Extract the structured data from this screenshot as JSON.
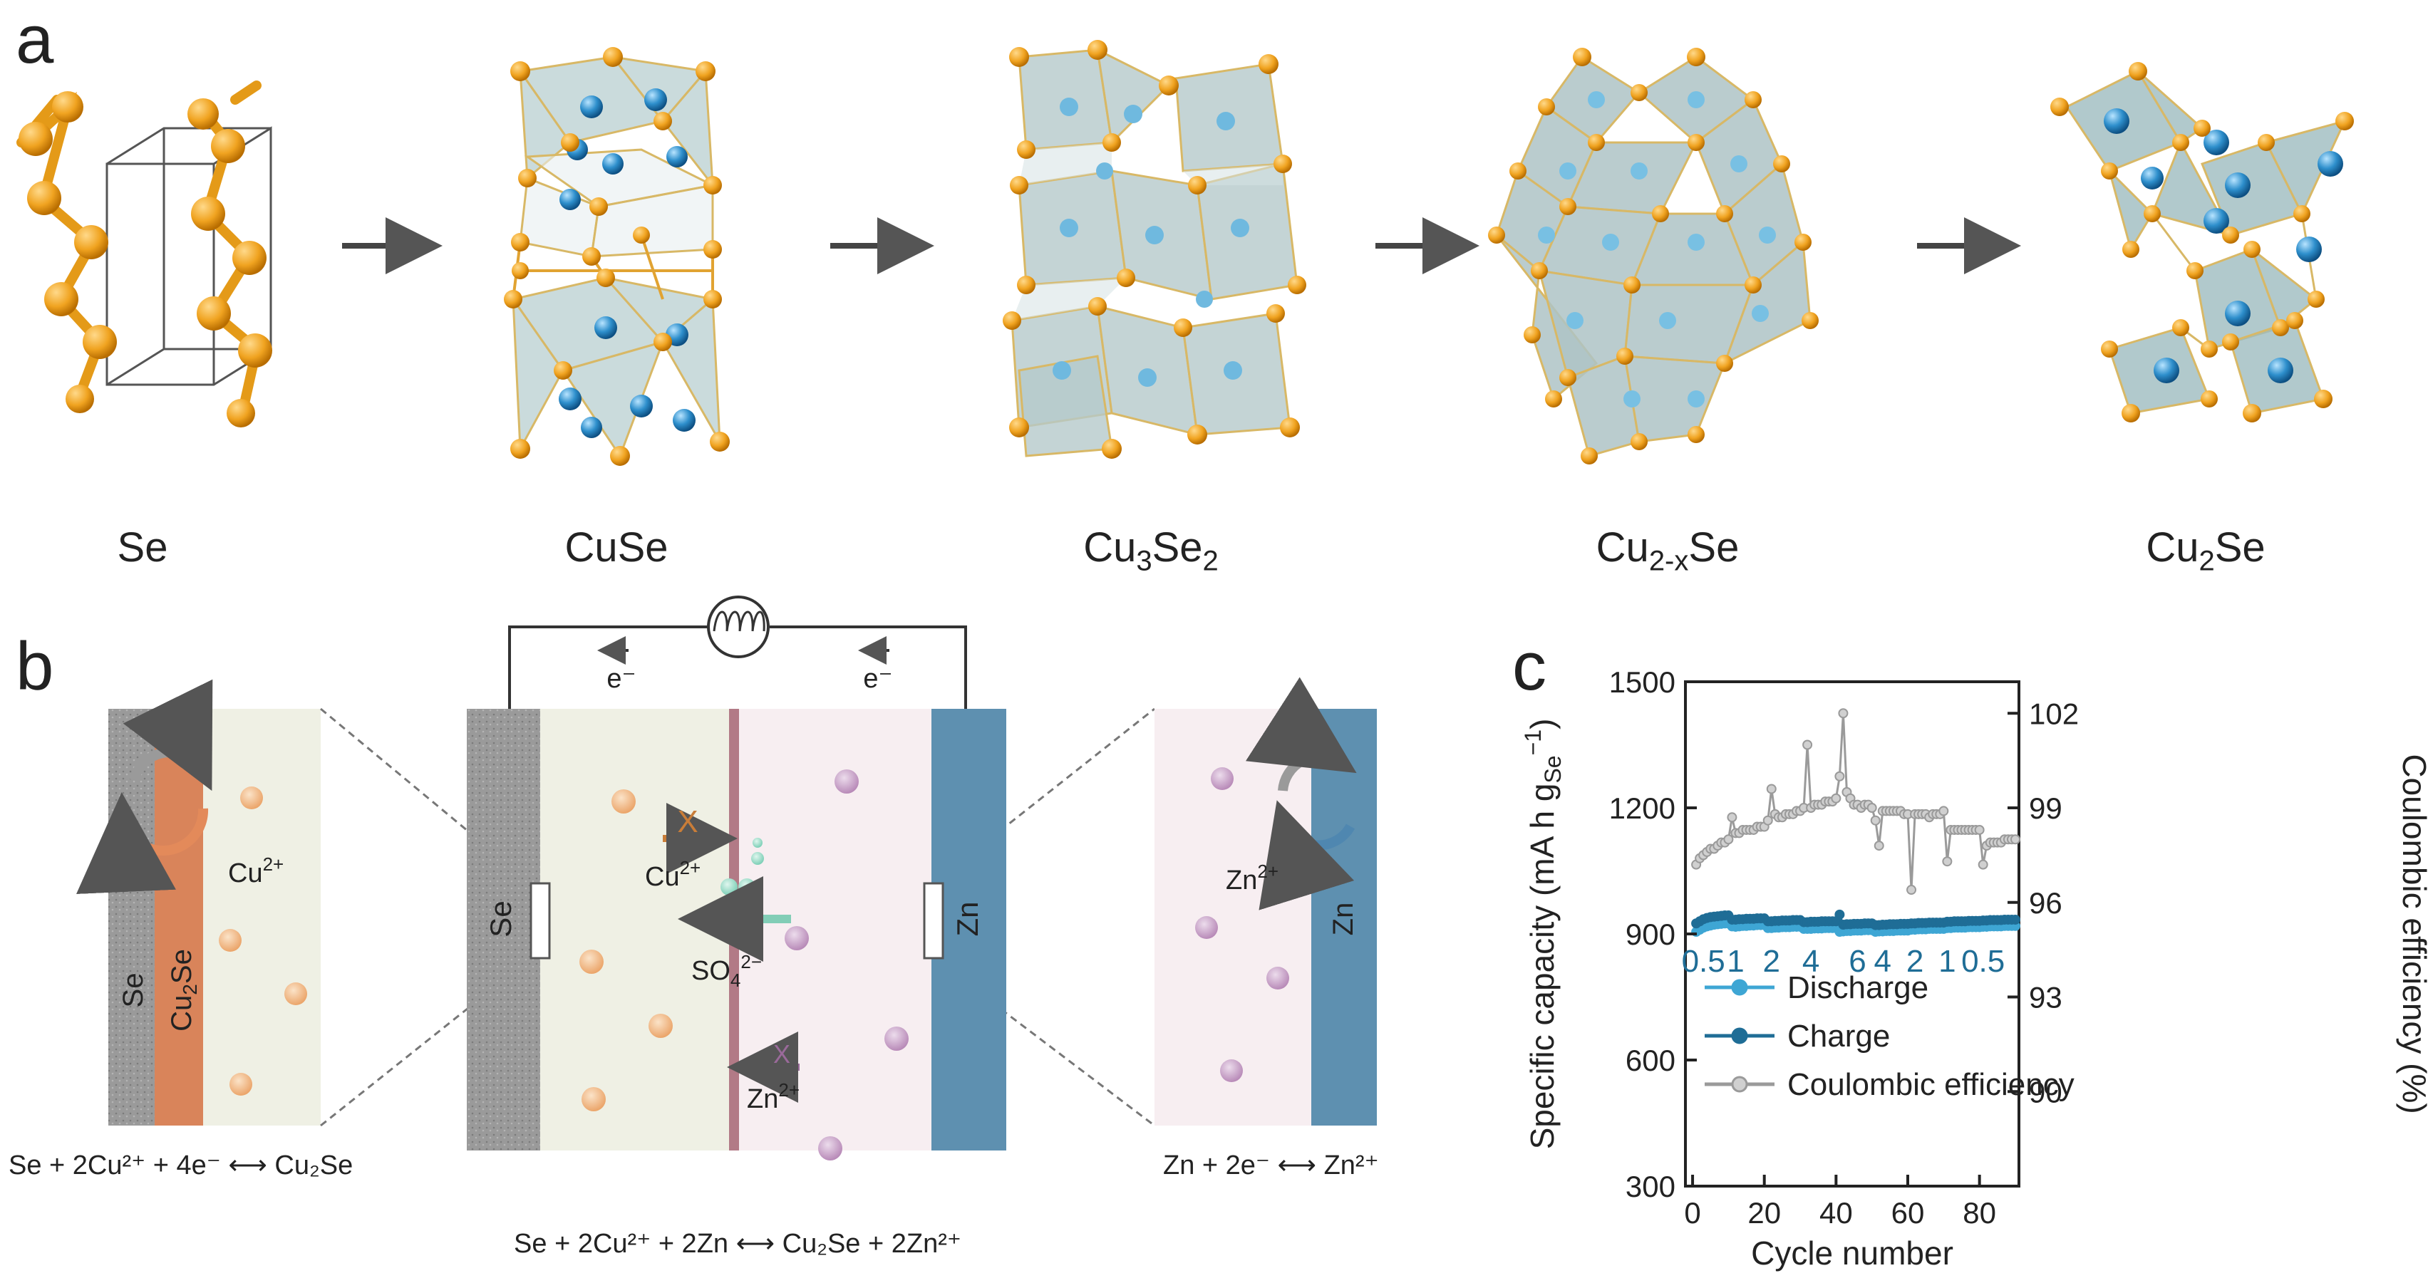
{
  "panels": {
    "a": "a",
    "b": "b",
    "c": "c"
  },
  "panel_a": {
    "structures": [
      {
        "name": "Se",
        "label": "Se"
      },
      {
        "name": "CuSe",
        "label": "CuSe"
      },
      {
        "name": "Cu3Se2",
        "label": "Cu",
        "sub1": "3",
        "label2": "Se",
        "sub2": "2"
      },
      {
        "name": "Cu2-xSe",
        "label": "Cu",
        "sub1": "2-x",
        "label2": "Se"
      },
      {
        "name": "Cu2Se",
        "label": "Cu",
        "sub1": "2",
        "label2": "Se"
      }
    ]
  },
  "panel_b": {
    "electron_left": "e⁻",
    "electron_right": "e⁻",
    "left_zoom": {
      "se_label": "Se",
      "cu2se_main": "Cu",
      "cu2se_sub": "2",
      "cu2se_tail": "Se",
      "ion_main": "Cu",
      "ion_sup": "2+",
      "reaction": "Se + 2Cu²⁺ + 4e⁻ ⟷ Cu₂Se"
    },
    "cell": {
      "se_electrode": "Se",
      "zn_electrode": "Zn",
      "cu_blocked": "X",
      "cu_main": "Cu",
      "cu_sup": "2+",
      "so4_main": "SO",
      "so4_sub": "4",
      "so4_sup": "2−",
      "zn_blocked": "X",
      "zn_main": "Zn",
      "zn_sup": "2+",
      "reaction": "Se + 2Cu²⁺ + 2Zn ⟷ Cu₂Se + 2Zn²⁺"
    },
    "right_zoom": {
      "zn_label": "Zn",
      "ion_main": "Zn",
      "ion_sup": "2+",
      "reaction": "Zn + 2e⁻ ⟷ Zn²⁺"
    },
    "colors": {
      "se": "#9e9e9e",
      "cu2se": "#d9845a",
      "catholyte": "#eff0e4",
      "anolyte": "#f7eef1",
      "zn": "#5e90b0",
      "separator": "#b27a86",
      "cu_ion": "#f0bf8c",
      "zn_ion": "#c7a4c7",
      "so4": "#8ed8c4"
    }
  },
  "chart_data": {
    "type": "scatter",
    "xlabel": "Cycle number",
    "ylabel_main": "Specific capacity (mA h g",
    "ylabel_sub": "Se",
    "ylabel_sup": "−1",
    "ylabel_end": ")",
    "y2label": "Coulombic efficiency (%)",
    "xlim": [
      -2,
      91
    ],
    "ylim": [
      300,
      1500
    ],
    "y2lim": [
      87,
      103
    ],
    "xticks": [
      0,
      20,
      40,
      60,
      80
    ],
    "yticks": [
      300,
      600,
      900,
      1200,
      1500
    ],
    "y2ticks": [
      90,
      93,
      96,
      99,
      102
    ],
    "rate_labels": [
      {
        "text": "0.5",
        "x": 3
      },
      {
        "text": "1",
        "x": 12
      },
      {
        "text": "2",
        "x": 22
      },
      {
        "text": "4",
        "x": 33
      },
      {
        "text": "6",
        "x": 46
      },
      {
        "text": "4",
        "x": 53
      },
      {
        "text": "2",
        "x": 62
      },
      {
        "text": "1",
        "x": 71
      },
      {
        "text": "0.5",
        "x": 81
      }
    ],
    "legend": [
      "Discharge",
      "Charge",
      "Coulombic efficiency"
    ],
    "legend_position": "bottom-left",
    "grid": false,
    "series": [
      {
        "name": "Discharge",
        "axis": "left",
        "color": "#3ea6d4",
        "values": [
          905,
          910,
          915,
          918,
          920,
          922,
          923,
          924,
          925,
          925,
          918,
          917,
          918,
          919,
          919,
          920,
          920,
          921,
          921,
          921,
          914,
          914,
          915,
          915,
          916,
          916,
          916,
          917,
          917,
          917,
          912,
          912,
          912,
          913,
          913,
          913,
          914,
          914,
          914,
          914,
          905,
          906,
          907,
          907,
          908,
          908,
          908,
          909,
          909,
          909,
          905,
          906,
          906,
          907,
          907,
          907,
          908,
          908,
          908,
          908,
          910,
          910,
          911,
          911,
          911,
          912,
          912,
          912,
          912,
          912,
          914,
          914,
          915,
          915,
          915,
          915,
          916,
          916,
          916,
          916,
          917,
          917,
          918,
          918,
          918,
          918,
          919,
          919,
          919,
          919
        ]
      },
      {
        "name": "Charge",
        "axis": "left",
        "color": "#1f6d96",
        "values": [
          925,
          930,
          935,
          938,
          940,
          941,
          942,
          943,
          944,
          944,
          934,
          934,
          935,
          935,
          936,
          936,
          936,
          937,
          937,
          937,
          930,
          930,
          931,
          931,
          932,
          932,
          932,
          933,
          933,
          933,
          928,
          928,
          929,
          929,
          929,
          930,
          930,
          930,
          930,
          930,
          946,
          922,
          923,
          923,
          924,
          924,
          924,
          925,
          925,
          925,
          921,
          921,
          922,
          922,
          923,
          923,
          923,
          924,
          924,
          924,
          925,
          925,
          926,
          926,
          926,
          927,
          927,
          927,
          927,
          927,
          929,
          929,
          930,
          930,
          930,
          930,
          931,
          931,
          931,
          931,
          932,
          932,
          933,
          933,
          933,
          933,
          934,
          934,
          934,
          934
        ]
      },
      {
        "name": "Coulombic efficiency",
        "axis": "right",
        "color": "#9a9a9a",
        "values": [
          97.2,
          97.4,
          97.5,
          97.6,
          97.7,
          97.7,
          97.8,
          97.9,
          97.9,
          98.0,
          98.7,
          98.2,
          98.2,
          98.3,
          98.3,
          98.3,
          98.3,
          98.4,
          98.4,
          98.4,
          98.6,
          99.6,
          98.8,
          98.7,
          98.7,
          98.8,
          98.8,
          98.8,
          98.9,
          98.9,
          99.0,
          101.0,
          99.0,
          99.1,
          99.1,
          99.1,
          99.2,
          99.2,
          99.2,
          99.3,
          100.0,
          102.0,
          99.5,
          99.3,
          99.1,
          99.1,
          99.0,
          99.1,
          99.1,
          99.0,
          98.6,
          97.8,
          98.9,
          98.9,
          98.9,
          98.9,
          98.9,
          98.9,
          98.8,
          98.8,
          96.4,
          98.8,
          98.8,
          98.8,
          98.8,
          98.7,
          98.8,
          98.8,
          98.8,
          98.9,
          97.3,
          98.3,
          98.3,
          98.3,
          98.3,
          98.3,
          98.3,
          98.3,
          98.3,
          98.3,
          97.2,
          97.8,
          97.9,
          97.9,
          97.9,
          97.9,
          98.0,
          98.0,
          98.0,
          98.0
        ]
      }
    ]
  }
}
